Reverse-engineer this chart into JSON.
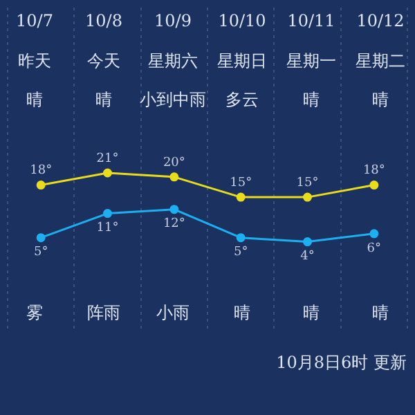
{
  "chart_data": {
    "type": "line",
    "categories": [
      "10/7",
      "10/8",
      "10/9",
      "10/10",
      "10/11",
      "10/12"
    ],
    "series": [
      {
        "color": "#e8dc1c",
        "values": [
          18,
          21,
          20,
          15,
          15,
          18
        ],
        "value_labels": [
          "18°",
          "21°",
          "20°",
          "15°",
          "15°",
          "18°"
        ]
      },
      {
        "color": "#1cb0f0",
        "values": [
          5,
          11,
          12,
          5,
          4,
          6
        ],
        "value_labels": [
          "5°",
          "11°",
          "12°",
          "5°",
          "4°",
          "6°"
        ]
      }
    ],
    "annotations": [
      "昨天",
      "今天",
      "星期六",
      "星期日",
      "星期一",
      "星期二",
      "晴",
      "晴",
      "小到中雨",
      "多云",
      "晴",
      "晴",
      "雾",
      "阵雨",
      "小雨",
      "晴",
      "晴",
      "晴",
      "10月8日6时 更新"
    ],
    "grid": "x",
    "marker": "circle",
    "legend": false
  }
}
